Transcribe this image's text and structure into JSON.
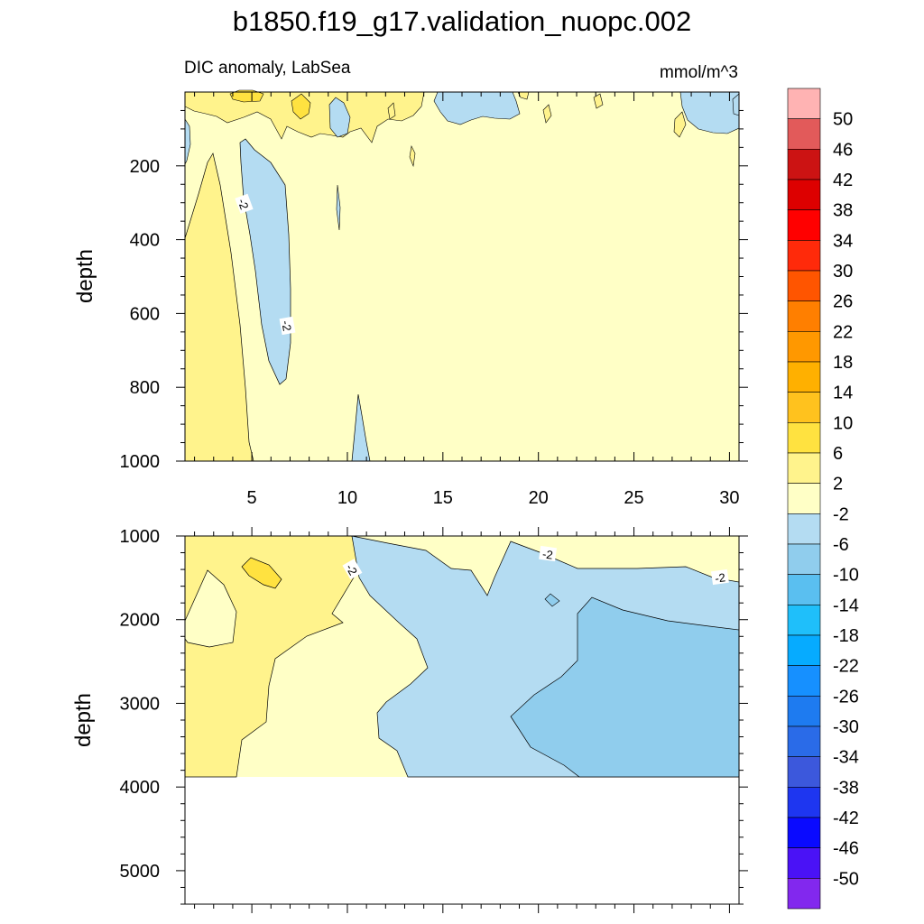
{
  "figure": {
    "title": "b1850.f19_g17.validation_nuopc.002",
    "left_string": "DIC anomaly, LabSea",
    "right_string": "mmol/m^3"
  },
  "chart_data": [
    {
      "type": "heatmap",
      "panel": "upper",
      "ylabel": "depth",
      "xlabel": "",
      "xlim": [
        1.5,
        30.5
      ],
      "ylim": [
        0,
        1000
      ],
      "y_reversed": true,
      "x_ticks": [
        "5",
        "10",
        "15",
        "20",
        "25",
        "30"
      ],
      "y_ticks": [
        "200",
        "400",
        "600",
        "800",
        "1000"
      ],
      "contour_labels": [
        "-2",
        "-2"
      ],
      "background_level": "-2 to 2",
      "regions": [
        {
          "level": "2 to 6",
          "description": "band along x=1.5-5 from depth 170 to 1000"
        },
        {
          "level": "-6 to -2",
          "description": "column near x=6-7 from depth 140 to 790"
        },
        {
          "level": "-6 to -2",
          "description": "thin column near x=10.5-11 from depth 820 to 1000"
        },
        {
          "level": "2 to 6",
          "description": "near-surface patches x=2-13 above depth 120"
        },
        {
          "level": "6 to 10",
          "description": "small surface cores near x=4 and x=7.5"
        },
        {
          "level": "-6 to -2",
          "description": "near-surface patches near x=9.5, x=15-19, x=26-29"
        }
      ]
    },
    {
      "type": "heatmap",
      "panel": "lower",
      "ylabel": "depth",
      "xlabel": "",
      "xlim": [
        1.5,
        30.5
      ],
      "ylim": [
        1000,
        5400
      ],
      "y_reversed": true,
      "x_ticks": [],
      "y_ticks": [
        "1000",
        "2000",
        "3000",
        "4000",
        "5000"
      ],
      "contour_labels": [
        "-2",
        "-2",
        "-2"
      ],
      "data_bottom_depth": 3870,
      "regions": [
        {
          "level": "2 to 6",
          "description": "western region x=1.5-10 from 1000 to 3870"
        },
        {
          "level": "-2 to 2",
          "description": "lens near x=2-4 from 1400 to 2300"
        },
        {
          "level": "6 to 10",
          "description": "small core near x=5 around depth 1450"
        },
        {
          "level": "-2 to 2",
          "description": "central band x=6-13"
        },
        {
          "level": "-6 to -2",
          "description": "eastern region x=10.5-30.5"
        },
        {
          "level": "-10 to -6",
          "description": "deep eastern core x=18.5-30.5 below depth 1800"
        }
      ]
    }
  ],
  "colorbar": {
    "labels": [
      "50",
      "46",
      "42",
      "38",
      "34",
      "30",
      "26",
      "22",
      "18",
      "14",
      "10",
      "6",
      "2",
      "-2",
      "-6",
      "-10",
      "-14",
      "-18",
      "-22",
      "-26",
      "-30",
      "-34",
      "-38",
      "-42",
      "-46",
      "-50"
    ],
    "colors": [
      "#FFB3B3",
      "#E25A5A",
      "#CC1313",
      "#DD0000",
      "#FF0000",
      "#FF2A0A",
      "#FF5500",
      "#FF7F00",
      "#FF9800",
      "#FFB000",
      "#FFC21E",
      "#FFE240",
      "#FFF38C",
      "#FFFFC6",
      "#B4DCF2",
      "#90CDED",
      "#5ABFF0",
      "#1FBFFA",
      "#06ABFF",
      "#1690FF",
      "#1E7BF0",
      "#2A6BE8",
      "#3C58DC",
      "#1E36F0",
      "#0A0AFF",
      "#4A12F6",
      "#8228EE"
    ]
  }
}
